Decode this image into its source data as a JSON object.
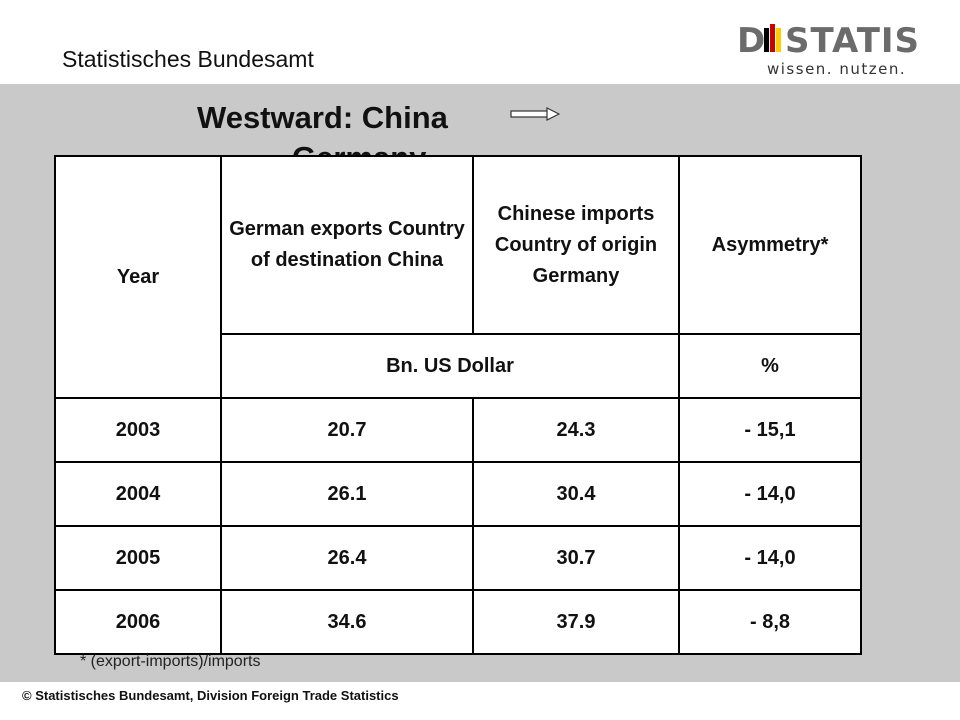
{
  "header": {
    "org_name": "Statistisches Bundesamt",
    "logo_text": "DESTATIS",
    "logo_tagline": "wissen. nutzen.",
    "logo_colors": [
      "#000000",
      "#cc0000",
      "#ffcc00",
      "#999999"
    ]
  },
  "title": {
    "line1": "Westward: China",
    "line2": "Germany",
    "arrow": "right-arrow"
  },
  "table": {
    "header_year": "Year",
    "col1": "German exports Country of destination China",
    "col2": "Chinese imports Country of origin Germany",
    "col3": "Asymmetry*",
    "unit_currency": "Bn. US Dollar",
    "unit_percent": "%",
    "rows": [
      {
        "year": "2003",
        "exports": "20.7",
        "imports": "24.3",
        "asymmetry": "- 15,1"
      },
      {
        "year": "2004",
        "exports": "26.1",
        "imports": "30.4",
        "asymmetry": "- 14,0"
      },
      {
        "year": "2005",
        "exports": "26.4",
        "imports": "30.7",
        "asymmetry": "- 14,0"
      },
      {
        "year": "2006",
        "exports": "34.6",
        "imports": "37.9",
        "asymmetry": "- 8,8"
      }
    ]
  },
  "footnote": "* (export-imports)/imports",
  "copyright": "© Statistisches Bundesamt, Division Foreign Trade Statistics"
}
